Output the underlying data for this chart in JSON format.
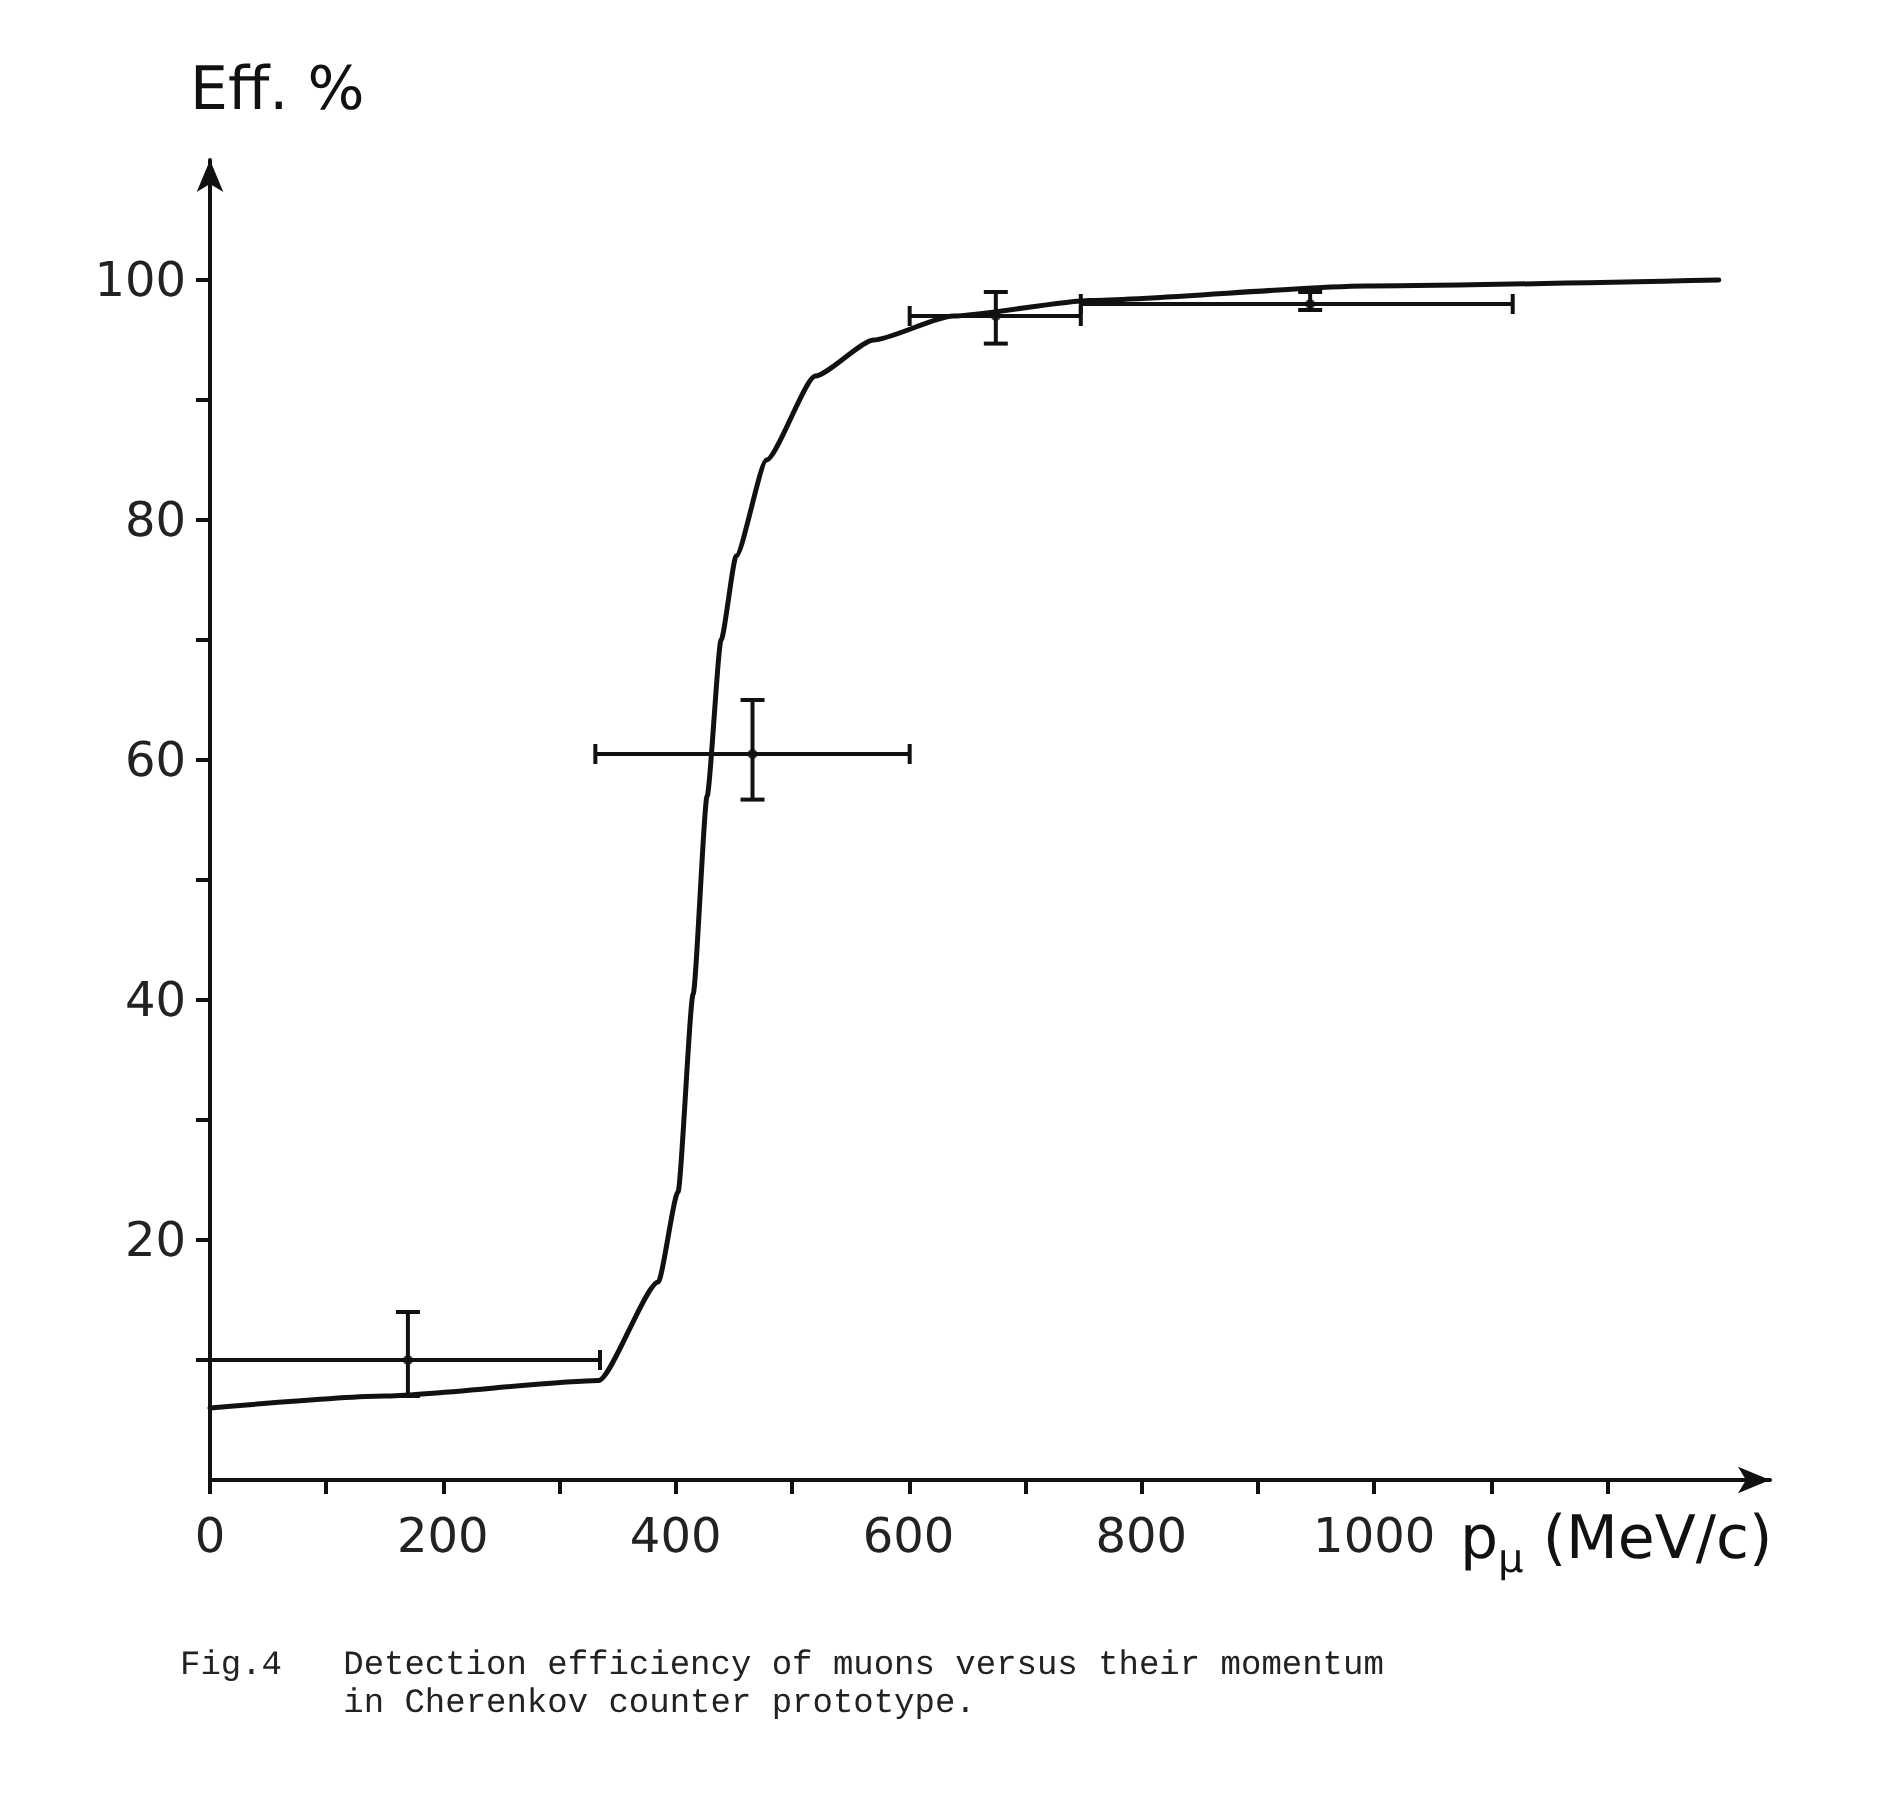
{
  "chart_data": {
    "type": "line",
    "xlabel": "p$_{μ}$ (MeV/c)",
    "ylabel": "Eff. %",
    "annotations": [
      "Fig.4   Detection efficiency of muons versus their momentum\n        in Cherenkov counter prototype."
    ],
    "xlim": [
      0,
      1340
    ],
    "ylim": [
      0,
      110
    ],
    "xticks": [
      0,
      {
        "value": 100,
        "label": null
      },
      200,
      {
        "value": 300,
        "label": null
      },
      400,
      {
        "value": 500,
        "label": null
      },
      600,
      {
        "value": 700,
        "label": null
      },
      800,
      {
        "value": 900,
        "label": null
      },
      1000,
      {
        "value": 1100,
        "label": null
      },
      {
        "value": 1200,
        "label": null
      }
    ],
    "yticks": [
      {
        "value": 10,
        "label": null
      },
      20,
      {
        "value": 30,
        "label": null
      },
      40,
      {
        "value": 50,
        "label": null
      },
      60,
      {
        "value": 70,
        "label": null
      },
      80,
      {
        "value": 90,
        "label": null
      },
      100
    ],
    "grid": false,
    "series": [
      {
        "color": "#111111",
        "marker": "none",
        "line_style": "solid",
        "x": [
          0,
          150,
          334,
          385,
          402,
          415,
          427,
          439,
          452,
          478,
          520,
          570,
          638,
          756,
          992,
          1296
        ],
        "values": [
          6,
          7,
          8.3,
          16.5,
          24,
          40.5,
          57,
          70,
          77,
          85,
          92,
          95,
          97,
          98.3,
          99.5,
          100
        ]
      },
      {
        "type": "scatter",
        "color": "#111111",
        "marker": "circle",
        "x": [
          170,
          466,
          675,
          945
        ],
        "values": [
          10,
          60.5,
          97,
          98
        ],
        "errors": [
          [
            7,
            14
          ],
          [
            56.7,
            65
          ],
          [
            94.7,
            99
          ],
          [
            97.5,
            99
          ]
        ],
        "xerrors": [
          [
            0,
            335
          ],
          [
            331,
            601
          ],
          [
            601,
            748
          ],
          [
            748,
            1119
          ]
        ]
      }
    ]
  }
}
